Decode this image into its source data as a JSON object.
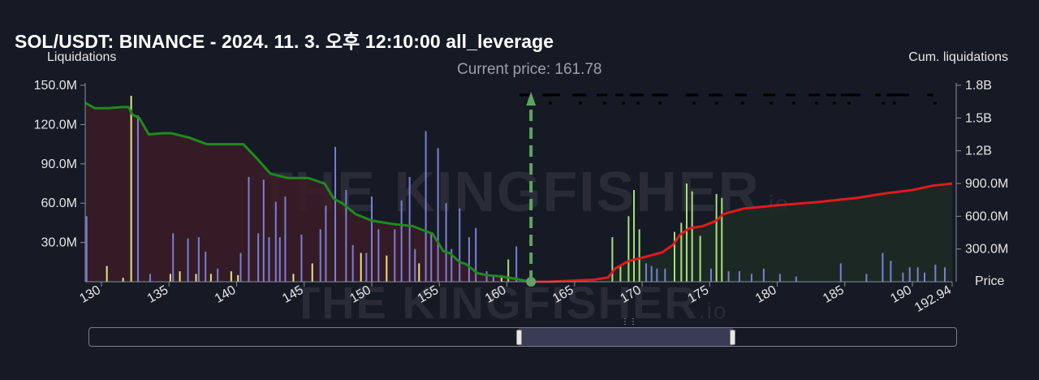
{
  "title": "SOL/USDT: BINANCE - 2024. 11. 3. 오후 12:10:00 all_leverage",
  "left_axis_title": "Liquidations",
  "right_axis_title": "Cum. liquidations",
  "price_axis_label": "Price",
  "current_price_label": "Current price: 161.78",
  "watermark": "THE KINGFISHER",
  "watermark_suffix": ".io",
  "colors": {
    "background": "#161a25",
    "long_cum_line": "#1f8a1f",
    "short_cum_line": "#e01b1b",
    "long_fill": "#3a1c27",
    "short_fill": "#1d2c25",
    "bar_blue": "#7b7fd4",
    "bar_yellow": "#e4e58a",
    "bar_green": "#a8e07a",
    "current_price_marker": "#5fa35f"
  },
  "chart_data": {
    "type": "bar",
    "title": "SOL/USDT: BINANCE - 2024. 11. 3. 오후 12:10:00 all_leverage",
    "xlabel": "Price",
    "ylabel": "Liquidations",
    "y2label": "Cum. liquidations",
    "xlim": [
      128.8,
      192.94
    ],
    "ylim": [
      0,
      150000000
    ],
    "y2lim": [
      0,
      1800000000
    ],
    "x_ticks": [
      "130",
      "135",
      "140",
      "145",
      "150",
      "155",
      "160",
      "165",
      "170",
      "175",
      "180",
      "185",
      "190",
      "192.94"
    ],
    "y_ticks": [
      "30.0M",
      "60.0M",
      "90.0M",
      "120.0M",
      "150.0M"
    ],
    "y2_ticks": [
      "300.0M",
      "600.0M",
      "900.0M",
      "1.2B",
      "1.5B",
      "1.8B"
    ],
    "current_price": 161.78,
    "bars": [
      {
        "x": 128.9,
        "value": 50000000,
        "color": "blue"
      },
      {
        "x": 130.4,
        "value": 12000000,
        "color": "yellow"
      },
      {
        "x": 131.6,
        "value": 3000000,
        "color": "yellow"
      },
      {
        "x": 132.2,
        "value": 142000000,
        "color": "yellow"
      },
      {
        "x": 132.7,
        "value": 127000000,
        "color": "blue"
      },
      {
        "x": 133.6,
        "value": 6000000,
        "color": "blue"
      },
      {
        "x": 135.1,
        "value": 6000000,
        "color": "yellow"
      },
      {
        "x": 135.3,
        "value": 37000000,
        "color": "blue"
      },
      {
        "x": 135.8,
        "value": 8000000,
        "color": "yellow"
      },
      {
        "x": 136.4,
        "value": 33000000,
        "color": "blue"
      },
      {
        "x": 137.0,
        "value": 6000000,
        "color": "yellow"
      },
      {
        "x": 137.2,
        "value": 34000000,
        "color": "blue"
      },
      {
        "x": 137.7,
        "value": 23000000,
        "color": "blue"
      },
      {
        "x": 138.1,
        "value": 6000000,
        "color": "yellow"
      },
      {
        "x": 138.6,
        "value": 10000000,
        "color": "blue"
      },
      {
        "x": 139.6,
        "value": 8000000,
        "color": "yellow"
      },
      {
        "x": 140.1,
        "value": 5000000,
        "color": "yellow"
      },
      {
        "x": 140.3,
        "value": 22000000,
        "color": "blue"
      },
      {
        "x": 140.9,
        "value": 80000000,
        "color": "blue"
      },
      {
        "x": 141.6,
        "value": 37000000,
        "color": "blue"
      },
      {
        "x": 142.0,
        "value": 78000000,
        "color": "blue"
      },
      {
        "x": 142.4,
        "value": 34000000,
        "color": "blue"
      },
      {
        "x": 142.9,
        "value": 61000000,
        "color": "blue"
      },
      {
        "x": 143.2,
        "value": 34000000,
        "color": "blue"
      },
      {
        "x": 143.6,
        "value": 65000000,
        "color": "blue"
      },
      {
        "x": 144.2,
        "value": 6000000,
        "color": "yellow"
      },
      {
        "x": 144.8,
        "value": 36000000,
        "color": "blue"
      },
      {
        "x": 145.6,
        "value": 14000000,
        "color": "yellow"
      },
      {
        "x": 146.2,
        "value": 40000000,
        "color": "blue"
      },
      {
        "x": 146.6,
        "value": 58000000,
        "color": "blue"
      },
      {
        "x": 147.3,
        "value": 103000000,
        "color": "blue"
      },
      {
        "x": 148.1,
        "value": 70000000,
        "color": "blue"
      },
      {
        "x": 148.6,
        "value": 28000000,
        "color": "blue"
      },
      {
        "x": 149.2,
        "value": 22000000,
        "color": "yellow"
      },
      {
        "x": 149.6,
        "value": 22000000,
        "color": "blue"
      },
      {
        "x": 150.0,
        "value": 65000000,
        "color": "blue"
      },
      {
        "x": 150.5,
        "value": 40000000,
        "color": "blue"
      },
      {
        "x": 151.1,
        "value": 20000000,
        "color": "yellow"
      },
      {
        "x": 151.7,
        "value": 40000000,
        "color": "blue"
      },
      {
        "x": 152.2,
        "value": 62000000,
        "color": "blue"
      },
      {
        "x": 152.8,
        "value": 80000000,
        "color": "blue"
      },
      {
        "x": 153.2,
        "value": 25000000,
        "color": "blue"
      },
      {
        "x": 153.5,
        "value": 14000000,
        "color": "yellow"
      },
      {
        "x": 154.0,
        "value": 115000000,
        "color": "blue"
      },
      {
        "x": 154.4,
        "value": 38000000,
        "color": "blue"
      },
      {
        "x": 154.9,
        "value": 102000000,
        "color": "blue"
      },
      {
        "x": 155.5,
        "value": 60000000,
        "color": "blue"
      },
      {
        "x": 155.9,
        "value": 25000000,
        "color": "blue"
      },
      {
        "x": 156.5,
        "value": 56000000,
        "color": "blue"
      },
      {
        "x": 157.2,
        "value": 34000000,
        "color": "blue"
      },
      {
        "x": 157.7,
        "value": 41000000,
        "color": "blue"
      },
      {
        "x": 158.5,
        "value": 8000000,
        "color": "blue"
      },
      {
        "x": 159.0,
        "value": 4000000,
        "color": "blue"
      },
      {
        "x": 159.6,
        "value": 5000000,
        "color": "yellow"
      },
      {
        "x": 160.1,
        "value": 17000000,
        "color": "green"
      },
      {
        "x": 160.7,
        "value": 27000000,
        "color": "blue"
      },
      {
        "x": 167.8,
        "value": 34000000,
        "color": "green"
      },
      {
        "x": 168.4,
        "value": 12000000,
        "color": "green"
      },
      {
        "x": 169.0,
        "value": 50000000,
        "color": "green"
      },
      {
        "x": 169.4,
        "value": 70000000,
        "color": "green"
      },
      {
        "x": 169.8,
        "value": 40000000,
        "color": "green"
      },
      {
        "x": 170.3,
        "value": 14000000,
        "color": "blue"
      },
      {
        "x": 170.7,
        "value": 12000000,
        "color": "blue"
      },
      {
        "x": 171.1,
        "value": 10000000,
        "color": "blue"
      },
      {
        "x": 171.7,
        "value": 10000000,
        "color": "blue"
      },
      {
        "x": 172.4,
        "value": 38000000,
        "color": "green"
      },
      {
        "x": 172.9,
        "value": 45000000,
        "color": "green"
      },
      {
        "x": 173.3,
        "value": 75000000,
        "color": "green"
      },
      {
        "x": 173.7,
        "value": 69000000,
        "color": "green"
      },
      {
        "x": 174.3,
        "value": 35000000,
        "color": "green"
      },
      {
        "x": 175.1,
        "value": 10000000,
        "color": "blue"
      },
      {
        "x": 175.5,
        "value": 67000000,
        "color": "green"
      },
      {
        "x": 175.9,
        "value": 64000000,
        "color": "green"
      },
      {
        "x": 176.4,
        "value": 8000000,
        "color": "blue"
      },
      {
        "x": 177.2,
        "value": 8000000,
        "color": "blue"
      },
      {
        "x": 178.1,
        "value": 6000000,
        "color": "blue"
      },
      {
        "x": 179.0,
        "value": 10000000,
        "color": "blue"
      },
      {
        "x": 180.2,
        "value": 6000000,
        "color": "blue"
      },
      {
        "x": 181.4,
        "value": 4000000,
        "color": "blue"
      },
      {
        "x": 184.7,
        "value": 14000000,
        "color": "blue"
      },
      {
        "x": 186.6,
        "value": 6000000,
        "color": "blue"
      },
      {
        "x": 187.8,
        "value": 22000000,
        "color": "blue"
      },
      {
        "x": 188.4,
        "value": 16000000,
        "color": "blue"
      },
      {
        "x": 189.3,
        "value": 7000000,
        "color": "blue"
      },
      {
        "x": 189.8,
        "value": 11000000,
        "color": "blue"
      },
      {
        "x": 190.4,
        "value": 11000000,
        "color": "blue"
      },
      {
        "x": 190.9,
        "value": 7000000,
        "color": "blue"
      },
      {
        "x": 191.7,
        "value": 13000000,
        "color": "blue"
      },
      {
        "x": 192.4,
        "value": 11000000,
        "color": "blue"
      }
    ],
    "series": [
      {
        "side": "long",
        "x": [
          128.8,
          129.5,
          130.5,
          131.5,
          132.0,
          132.3,
          132.8,
          133.5,
          134.5,
          135.2,
          136.5,
          137.8,
          139.0,
          140.5,
          141.5,
          142.5,
          143.8,
          145.3,
          146.5,
          147.2,
          147.8,
          148.8,
          150.0,
          151.5,
          153.0,
          154.5,
          155.3,
          155.8,
          156.5,
          157.0,
          157.8,
          158.5,
          159.5,
          160.5,
          161.78
        ],
        "y": [
          1640000000,
          1590000000,
          1590000000,
          1600000000,
          1600000000,
          1530000000,
          1500000000,
          1350000000,
          1360000000,
          1360000000,
          1320000000,
          1260000000,
          1260000000,
          1260000000,
          1130000000,
          990000000,
          950000000,
          950000000,
          900000000,
          760000000,
          720000000,
          620000000,
          560000000,
          530000000,
          510000000,
          440000000,
          280000000,
          260000000,
          180000000,
          160000000,
          80000000,
          60000000,
          50000000,
          30000000,
          0
        ]
      },
      {
        "side": "short",
        "x": [
          161.78,
          163.0,
          165.0,
          166.5,
          167.5,
          168.0,
          169.0,
          170.0,
          171.5,
          172.3,
          172.8,
          173.5,
          174.5,
          175.5,
          176.0,
          177.5,
          180.0,
          183.0,
          186.0,
          188.0,
          190.0,
          191.5,
          192.94
        ],
        "y": [
          0,
          0,
          10000000,
          20000000,
          40000000,
          120000000,
          190000000,
          220000000,
          270000000,
          340000000,
          430000000,
          490000000,
          510000000,
          560000000,
          620000000,
          670000000,
          700000000,
          730000000,
          770000000,
          810000000,
          840000000,
          880000000,
          900000000
        ]
      }
    ]
  }
}
